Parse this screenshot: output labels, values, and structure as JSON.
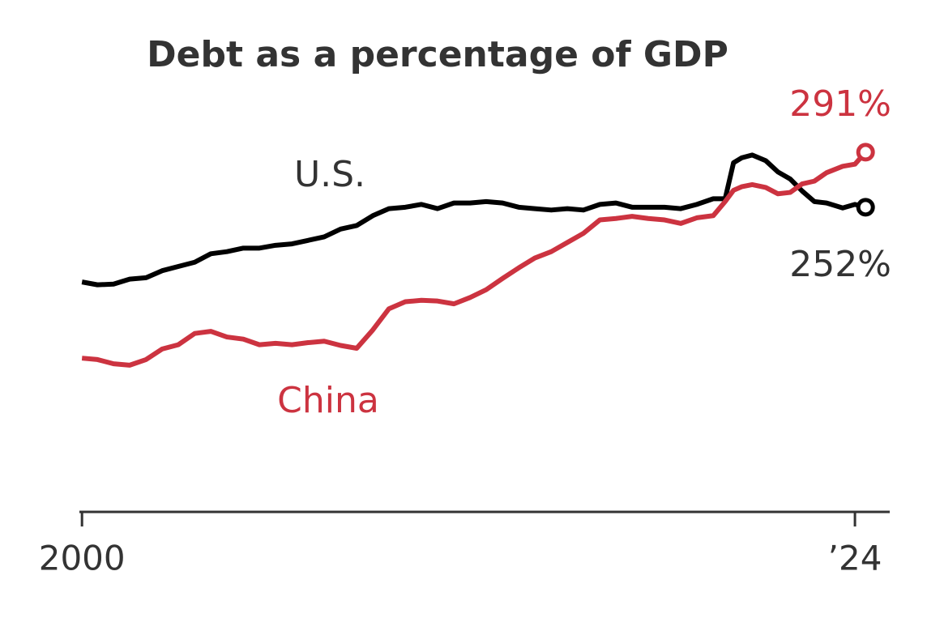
{
  "chart_data": {
    "type": "line",
    "title": "Debt as a percentage of GDP",
    "x": [
      2000,
      2000.48,
      2000.98,
      2001.48,
      2001.99,
      2002.49,
      2002.99,
      2003.5,
      2004,
      2004.5,
      2005.01,
      2005.51,
      2006.01,
      2006.52,
      2007.02,
      2007.52,
      2008.03,
      2008.53,
      2009.03,
      2009.53,
      2010.04,
      2010.54,
      2011.04,
      2011.55,
      2012.05,
      2012.55,
      2013.06,
      2013.56,
      2014.06,
      2014.57,
      2015.07,
      2015.57,
      2016.08,
      2016.58,
      2017.08,
      2017.58,
      2018.09,
      2018.59,
      2019.09,
      2019.6,
      2019.97,
      2020.23,
      2020.48,
      2020.81,
      2021.23,
      2021.61,
      2021.99,
      2022.36,
      2022.74,
      2023.12,
      2023.62,
      2024,
      2024.33
    ],
    "series": [
      {
        "name": "U.S.",
        "color": "#000000",
        "values": [
          199,
          197,
          197.5,
          201,
          202,
          207,
          210,
          213,
          219,
          220.5,
          223,
          223,
          225,
          226,
          228.5,
          231,
          236.5,
          239,
          246,
          251,
          252,
          254,
          251,
          255,
          255,
          256,
          255,
          252,
          251,
          250,
          251,
          250,
          254,
          255,
          252,
          252,
          252,
          251,
          254,
          258,
          258,
          283.5,
          287,
          289,
          285,
          277,
          272,
          263.5,
          256,
          255,
          251.5,
          254,
          252
        ],
        "value_labels": [
          null,
          null,
          null,
          null,
          null,
          null,
          null,
          null,
          null,
          null,
          null,
          null,
          null,
          null,
          null,
          null,
          null,
          null,
          null,
          null,
          null,
          null,
          null,
          null,
          null,
          null,
          null,
          null,
          null,
          null,
          null,
          null,
          null,
          null,
          null,
          null,
          null,
          null,
          null,
          null,
          null,
          null,
          null,
          null,
          null,
          null,
          null,
          null,
          null,
          null,
          null,
          null,
          "252%"
        ]
      },
      {
        "name": "China",
        "color": "#cc3340",
        "values": [
          145,
          144,
          141,
          140,
          144,
          151.5,
          154.5,
          162.5,
          164,
          160,
          158.5,
          154.5,
          155.5,
          154.5,
          156,
          157,
          154,
          152,
          165,
          180,
          185,
          186,
          185.5,
          183.5,
          188,
          193.5,
          201.5,
          209,
          216,
          220.5,
          227,
          233.5,
          243,
          244,
          245.5,
          244,
          243,
          240.5,
          244.5,
          246,
          256,
          264,
          266.5,
          268,
          266,
          261.5,
          262.5,
          268.5,
          270.5,
          276.5,
          281,
          282.5,
          291
        ],
        "value_labels": [
          null,
          null,
          null,
          null,
          null,
          null,
          null,
          null,
          null,
          null,
          null,
          null,
          null,
          null,
          null,
          null,
          null,
          null,
          null,
          null,
          null,
          null,
          null,
          null,
          null,
          null,
          null,
          null,
          null,
          null,
          null,
          null,
          null,
          null,
          null,
          null,
          null,
          null,
          null,
          null,
          null,
          null,
          null,
          null,
          null,
          null,
          null,
          null,
          null,
          null,
          null,
          null,
          "291%"
        ]
      }
    ],
    "xlim": [
      1999.92,
      2025.08
    ],
    "xticks": [
      2000,
      {
        "value": 2024,
        "label": "’24"
      }
    ],
    "ylim": [
      36,
      330
    ],
    "grid": false
  }
}
